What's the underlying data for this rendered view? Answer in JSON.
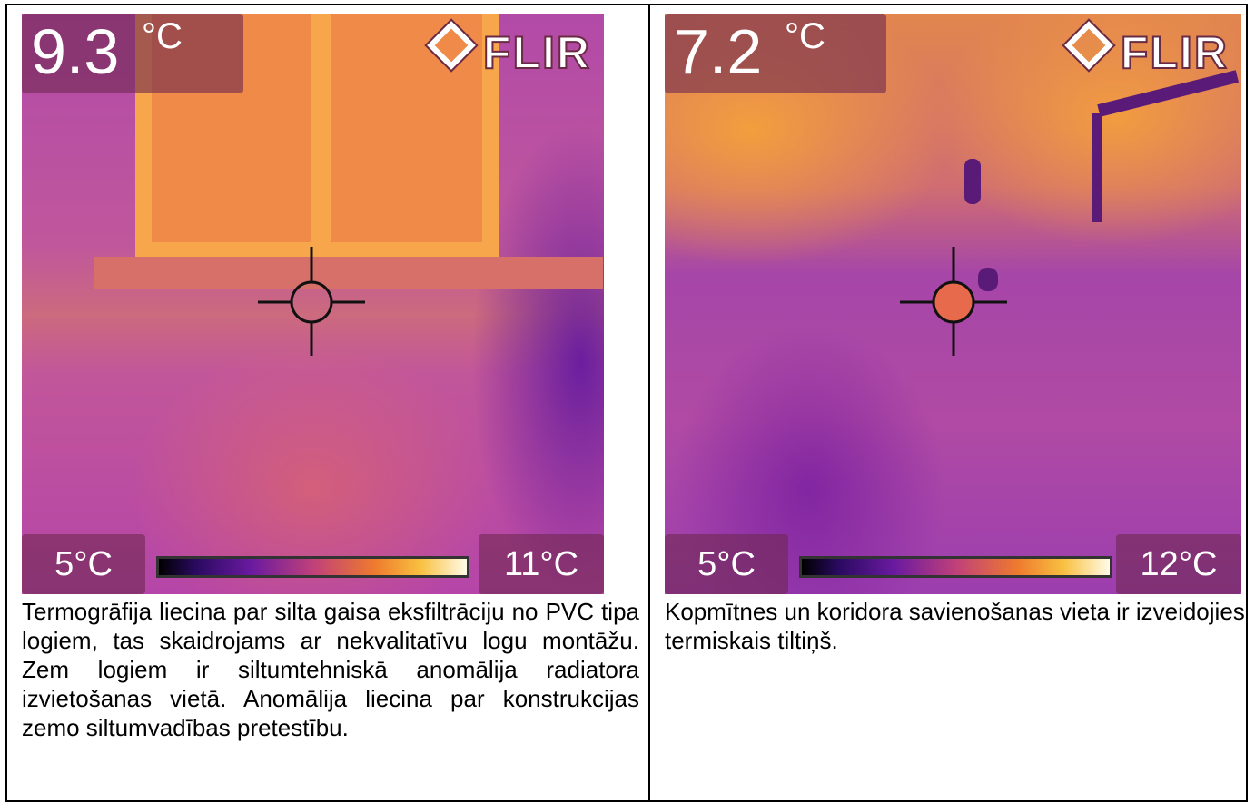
{
  "cells": [
    {
      "image": {
        "reading": "9.3",
        "unit": "°C",
        "brand": "FLIR",
        "scale_min": "5°C",
        "scale_max": "11°C"
      },
      "caption": "Termogrāfija liecina par silta gaisa eksfiltrāciju no PVC tipa logiem, tas skaidrojams ar nekvalitatīvu logu montāžu. Zem logiem ir siltumtehniskā anomālija radiatora izvietošanas vietā. Anomālija liecina par konstrukcijas zemo siltumvadības pretestību."
    },
    {
      "image": {
        "reading": "7.2",
        "unit": "°C",
        "brand": "FLIR",
        "scale_min": "5°C",
        "scale_max": "12°C"
      },
      "caption": "Kopmītnes un koridora savienošanas vieta ir izveidojies termiskais tiltiņš."
    }
  ]
}
